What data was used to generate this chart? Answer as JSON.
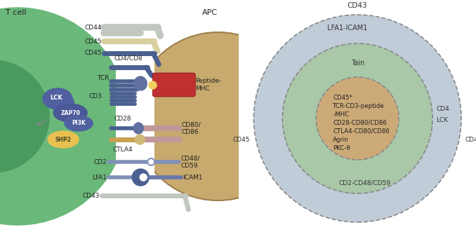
{
  "fig_width": 6.78,
  "fig_height": 3.31,
  "bg_color": "#ffffff",
  "left_panel": {
    "tcell_color": "#6ab87a",
    "tcell_dark": "#4a9a60",
    "apc_color": "#c8a96e",
    "bar_color": "#4a6090",
    "bar_color2": "#6070a0",
    "cd44_color": "#c0c8c0",
    "cd45a_color": "#d8d0a0",
    "peptide_mhc_color": "#c03030",
    "cd80_color": "#c09898",
    "cd2_color": "#8090b8",
    "lfa1_color": "#8090b8",
    "lfa1_head_color": "#4a6090",
    "icam1_color": "#8090b8",
    "cd43_color": "#c0c8c0",
    "lck_color": "#5060a0",
    "zap70_color": "#4a5898",
    "pi3k_color": "#5060a0",
    "shp2_color": "#e8c050",
    "ctla4_color": "#c8a050",
    "junction_color": "#f0d060"
  },
  "right_panel": {
    "outer_color": "#c0ccd8",
    "mid_color": "#a8c8a8",
    "inner_color": "#ccaa78",
    "border_color": "#888888",
    "outer_label": "CD43",
    "mid_label": "LFA1-ICAM1",
    "tain_label": "Tain",
    "inner_lines": [
      "CD45*",
      "TCR-CD3-peptide",
      "-MHC",
      "CD28-CD80/CD86",
      "CTLA4-CD80/CD86",
      "Agrin",
      "PKC-θ"
    ]
  }
}
